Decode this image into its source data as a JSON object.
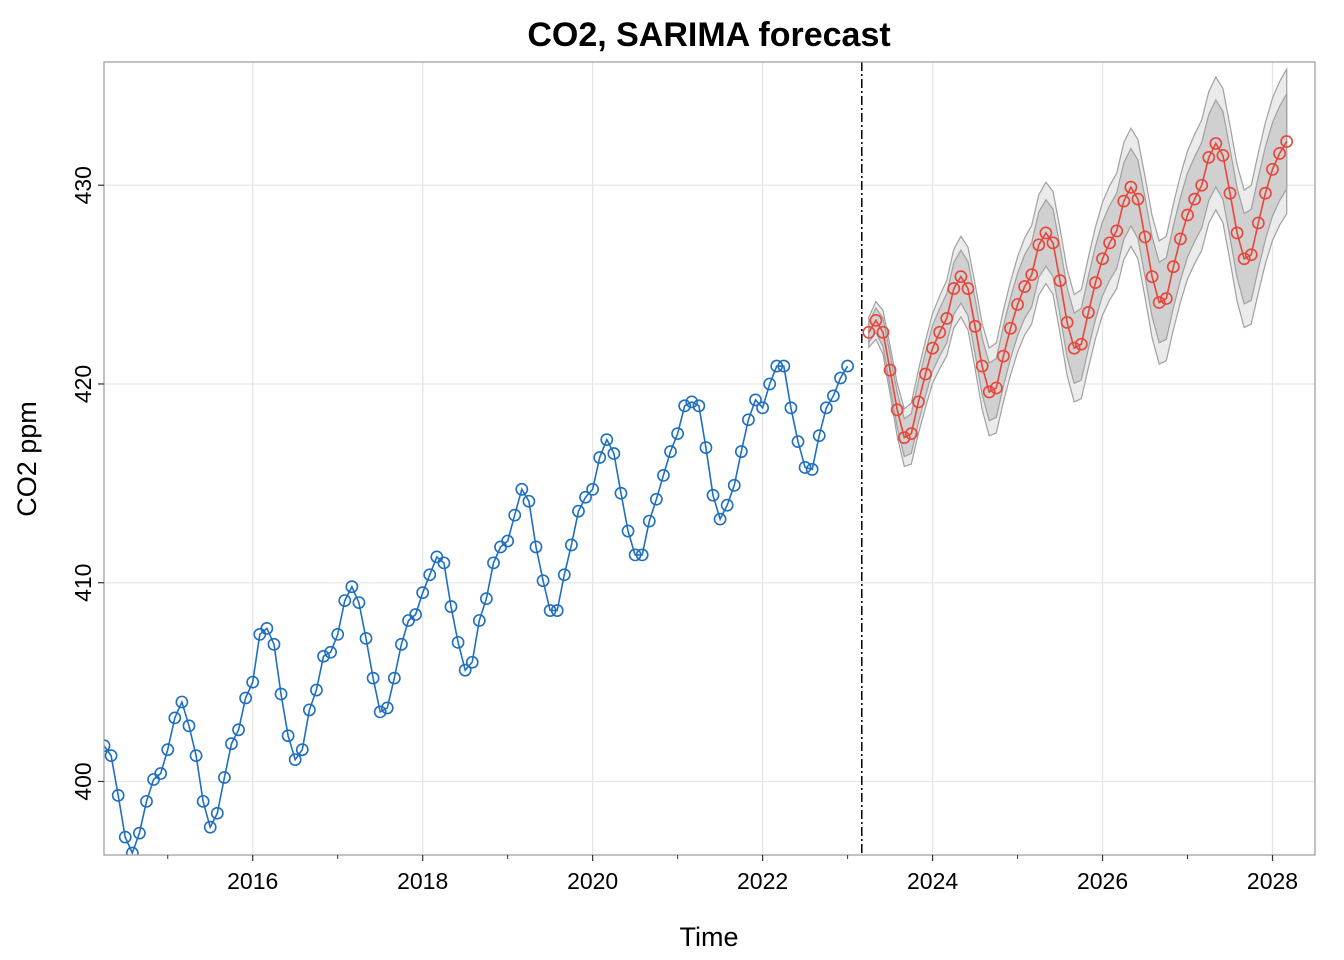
{
  "chart_data": {
    "type": "line",
    "title": "CO2, SARIMA forecast",
    "xlabel": "Time",
    "ylabel": "CO2 ppm",
    "xlim": [
      2014.25,
      2028.5
    ],
    "ylim": [
      396.3,
      436.2
    ],
    "x_ticks": [
      2016,
      2018,
      2020,
      2022,
      2024,
      2026,
      2028
    ],
    "x_minor_ticks": [
      2015,
      2017,
      2019,
      2021,
      2023,
      2025,
      2027
    ],
    "y_ticks": [
      400,
      410,
      420,
      430
    ],
    "grid": true,
    "legend": "none",
    "forecast_origin": 2023.167,
    "colors": {
      "observed": "#1f6fc0",
      "forecast": "#e8463a",
      "band_outer": "#ebebeb",
      "band_inner": "#d0d0d0",
      "band_edge": "#a0a0a0",
      "grid": "#e6e6e6",
      "frame": "#9a9a9a"
    },
    "series": [
      {
        "role": "observed",
        "x_start": 2014.25,
        "x_step": 0.08333,
        "values": [
          401.8,
          401.3,
          399.3,
          397.2,
          396.4,
          397.4,
          399.0,
          400.1,
          400.4,
          401.6,
          403.2,
          404.0,
          402.8,
          401.3,
          399.0,
          397.7,
          398.4,
          400.2,
          401.9,
          402.6,
          404.2,
          405.0,
          407.4,
          407.7,
          406.9,
          404.4,
          402.3,
          401.1,
          401.6,
          403.6,
          404.6,
          406.3,
          406.5,
          407.4,
          409.1,
          409.8,
          409.0,
          407.2,
          405.2,
          403.5,
          403.7,
          405.2,
          406.9,
          408.1,
          408.4,
          409.5,
          410.4,
          411.3,
          411.0,
          408.8,
          407.0,
          405.6,
          406.0,
          408.1,
          409.2,
          411.0,
          411.8,
          412.1,
          413.4,
          414.7,
          414.1,
          411.8,
          410.1,
          408.6,
          408.6,
          410.4,
          411.9,
          413.6,
          414.3,
          414.7,
          416.3,
          417.2,
          416.5,
          414.5,
          412.6,
          411.4,
          411.4,
          413.1,
          414.2,
          415.4,
          416.6,
          417.5,
          418.9,
          419.1,
          418.9,
          416.8,
          414.4,
          413.2,
          413.9,
          414.9,
          416.6,
          418.2,
          419.2,
          418.8,
          420.0,
          420.9,
          420.9,
          418.8,
          417.1,
          415.8,
          415.7,
          417.4,
          418.8,
          419.4,
          420.3,
          420.9
        ]
      },
      {
        "role": "forecast",
        "x_start": 2023.25,
        "x_step": 0.08333,
        "values": [
          422.6,
          423.2,
          422.6,
          420.7,
          418.7,
          417.3,
          417.5,
          419.1,
          420.5,
          421.8,
          422.6,
          423.3,
          424.8,
          425.4,
          424.8,
          422.9,
          420.9,
          419.6,
          419.8,
          421.4,
          422.8,
          424.0,
          424.9,
          425.5,
          427.0,
          427.6,
          427.1,
          425.2,
          423.1,
          421.8,
          422.0,
          423.6,
          425.1,
          426.3,
          427.1,
          427.7,
          429.2,
          429.9,
          429.3,
          427.4,
          425.4,
          424.1,
          424.3,
          425.9,
          427.3,
          428.5,
          429.3,
          430.0,
          431.4,
          432.1,
          431.5,
          429.6,
          427.6,
          426.3,
          426.5,
          428.1,
          429.6,
          430.8,
          431.6,
          432.2
        ]
      }
    ],
    "interval_80_halfwidth": [
      0.5,
      0.62,
      0.72,
      0.8,
      0.88,
      0.95,
      1.0,
      1.05,
      1.1,
      1.15,
      1.2,
      1.24,
      1.3,
      1.33,
      1.36,
      1.39,
      1.42,
      1.45,
      1.48,
      1.51,
      1.54,
      1.57,
      1.6,
      1.62,
      1.65,
      1.67,
      1.7,
      1.72,
      1.75,
      1.77,
      1.8,
      1.82,
      1.84,
      1.86,
      1.88,
      1.9,
      1.93,
      1.95,
      1.97,
      1.99,
      2.01,
      2.03,
      2.05,
      2.07,
      2.09,
      2.11,
      2.13,
      2.15,
      2.17,
      2.19,
      2.21,
      2.23,
      2.25,
      2.27,
      2.29,
      2.31,
      2.33,
      2.35,
      2.37,
      2.39
    ],
    "interval_95_halfwidth": [
      0.76,
      0.95,
      1.1,
      1.22,
      1.34,
      1.45,
      1.53,
      1.6,
      1.68,
      1.75,
      1.83,
      1.9,
      1.98,
      2.03,
      2.08,
      2.12,
      2.17,
      2.21,
      2.26,
      2.3,
      2.35,
      2.4,
      2.44,
      2.48,
      2.52,
      2.55,
      2.59,
      2.63,
      2.67,
      2.7,
      2.74,
      2.78,
      2.81,
      2.84,
      2.87,
      2.9,
      2.94,
      2.97,
      3.0,
      3.04,
      3.07,
      3.1,
      3.13,
      3.16,
      3.19,
      3.22,
      3.25,
      3.28,
      3.31,
      3.34,
      3.37,
      3.4,
      3.43,
      3.46,
      3.49,
      3.52,
      3.55,
      3.58,
      3.61,
      3.64
    ]
  }
}
